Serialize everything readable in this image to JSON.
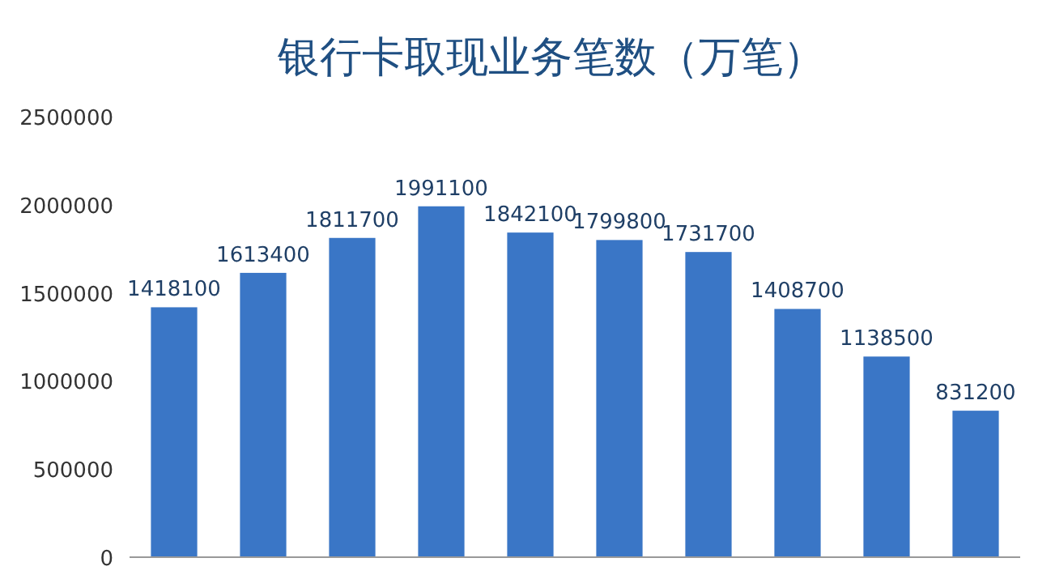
{
  "chart_data": {
    "type": "bar",
    "title": "银行卡取现业务笔数（万笔）",
    "categories": [
      null,
      null,
      null,
      null,
      null,
      null,
      null,
      null,
      null,
      null
    ],
    "values": [
      1418100,
      1613400,
      1811700,
      1991100,
      1842100,
      1799800,
      1731700,
      1408700,
      1138500,
      831200
    ],
    "color": "#3a76c6",
    "ylim": [
      0,
      2500000
    ],
    "yticks": [
      0,
      500000,
      1000000,
      1500000,
      2000000,
      2500000
    ],
    "data_labels": true,
    "grid": false
  }
}
